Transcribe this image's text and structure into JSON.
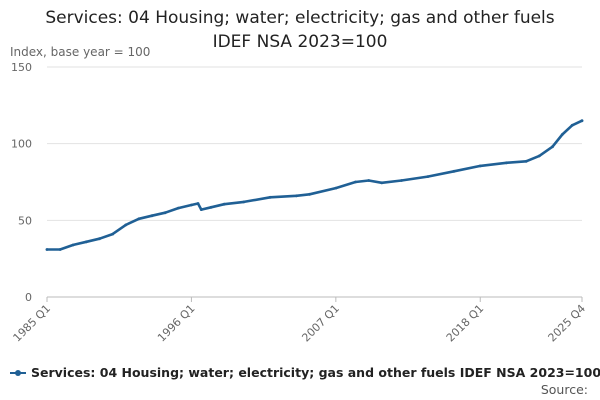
{
  "chart_data": {
    "type": "line",
    "title": "Services: 04 Housing; water; electricity; gas and other fuels IDEF NSA 2023=100",
    "title_lines": [
      "Services: 04 Housing; water; electricity; gas and other fuels",
      "IDEF NSA 2023=100"
    ],
    "ylabel": "Index, base year = 100",
    "xlabel": "",
    "ylim": [
      0,
      150
    ],
    "y_ticks": [
      0,
      50,
      100,
      150
    ],
    "x_range": [
      1985.0,
      2025.75
    ],
    "x_ticks": [
      {
        "label": "1985 Q1",
        "x": 1985.0
      },
      {
        "label": "1996 Q1",
        "x": 1996.0
      },
      {
        "label": "2007 Q1",
        "x": 2007.0
      },
      {
        "label": "2018 Q1",
        "x": 2018.0
      },
      {
        "label": "2025 Q4",
        "x": 2025.75
      }
    ],
    "grid": true,
    "color": "#206095",
    "series": [
      {
        "name": "Services: 04 Housing; water; electricity; gas and other fuels IDEF NSA 2023=100",
        "points": [
          [
            1985.0,
            31
          ],
          [
            1986.0,
            31
          ],
          [
            1987.0,
            34
          ],
          [
            1988.0,
            36
          ],
          [
            1989.0,
            38
          ],
          [
            1990.0,
            41
          ],
          [
            1991.0,
            47
          ],
          [
            1992.0,
            51
          ],
          [
            1993.0,
            53
          ],
          [
            1994.0,
            55
          ],
          [
            1995.0,
            58
          ],
          [
            1996.0,
            60
          ],
          [
            1996.5,
            61
          ],
          [
            1996.75,
            57
          ],
          [
            1997.5,
            58.5
          ],
          [
            1998.5,
            60.5
          ],
          [
            2000.0,
            62
          ],
          [
            2002.0,
            65
          ],
          [
            2004.0,
            66
          ],
          [
            2005.0,
            67
          ],
          [
            2007.0,
            71
          ],
          [
            2008.5,
            75
          ],
          [
            2009.5,
            76
          ],
          [
            2010.5,
            74.5
          ],
          [
            2012.0,
            76
          ],
          [
            2014.0,
            78.5
          ],
          [
            2016.0,
            82
          ],
          [
            2018.0,
            85.5
          ],
          [
            2020.0,
            87.5
          ],
          [
            2021.5,
            88.5
          ],
          [
            2022.5,
            92
          ],
          [
            2023.5,
            98
          ],
          [
            2024.25,
            106
          ],
          [
            2025.0,
            112
          ],
          [
            2025.75,
            115
          ]
        ]
      }
    ],
    "legend": "Services: 04 Housing; water; electricity; gas and other fuels IDEF NSA 2023=100",
    "source": "Source:"
  }
}
